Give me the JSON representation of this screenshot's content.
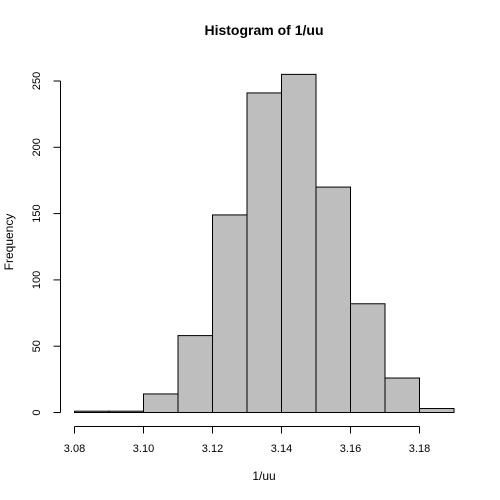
{
  "chart_data": {
    "type": "bar",
    "subtype": "histogram",
    "title": "Histogram of 1/uu",
    "xlabel": "1/uu",
    "ylabel": "Frequency",
    "bins": [
      {
        "from": 3.08,
        "to": 3.09,
        "count": 1
      },
      {
        "from": 3.09,
        "to": 3.1,
        "count": 1
      },
      {
        "from": 3.1,
        "to": 3.11,
        "count": 14
      },
      {
        "from": 3.11,
        "to": 3.12,
        "count": 58
      },
      {
        "from": 3.12,
        "to": 3.13,
        "count": 149
      },
      {
        "from": 3.13,
        "to": 3.14,
        "count": 241
      },
      {
        "from": 3.14,
        "to": 3.15,
        "count": 255
      },
      {
        "from": 3.15,
        "to": 3.16,
        "count": 170
      },
      {
        "from": 3.16,
        "to": 3.17,
        "count": 82
      },
      {
        "from": 3.17,
        "to": 3.18,
        "count": 26
      },
      {
        "from": 3.18,
        "to": 3.19,
        "count": 3
      }
    ],
    "xticks": [
      "3.08",
      "3.10",
      "3.12",
      "3.14",
      "3.16",
      "3.18"
    ],
    "yticks": [
      "0",
      "50",
      "100",
      "150",
      "200",
      "250"
    ],
    "xlim": [
      3.08,
      3.19
    ],
    "ylim": [
      0,
      255
    ],
    "bar_color": "#bebebe",
    "grid": false,
    "legend": "none"
  }
}
